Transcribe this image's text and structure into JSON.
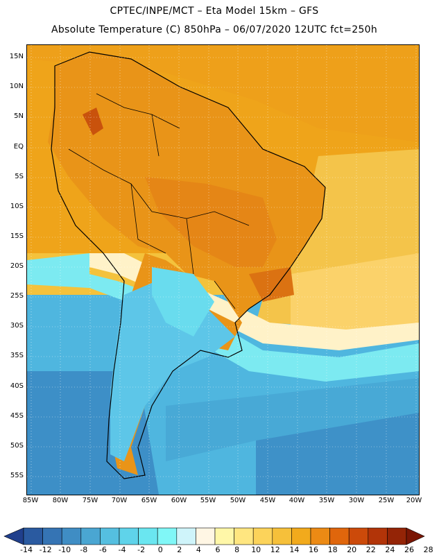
{
  "header": {
    "line1": "CPTEC/INPE/MCT –  Eta Model 15km – GFS",
    "line2": "Absolute Temperature (C) 850hPa – 06/07/2020 12UTC fct=250h"
  },
  "lat_labels": [
    "15N",
    "10N",
    "5N",
    "EQ",
    "5S",
    "10S",
    "15S",
    "20S",
    "25S",
    "30S",
    "35S",
    "40S",
    "45S",
    "50S",
    "55S"
  ],
  "lon_labels": [
    "85W",
    "80W",
    "75W",
    "70W",
    "65W",
    "60W",
    "55W",
    "50W",
    "45W",
    "40W",
    "35W",
    "30W",
    "25W",
    "20W"
  ],
  "colorbar": {
    "labels": [
      "-14",
      "-12",
      "-10",
      "-8",
      "-6",
      "-4",
      "-2",
      "0",
      "2",
      "4",
      "6",
      "8",
      "10",
      "12",
      "14",
      "16",
      "18",
      "20",
      "22",
      "24",
      "26",
      "28"
    ],
    "colors": [
      "#203f8c",
      "#2a5aa0",
      "#3574b4",
      "#3f8dc4",
      "#4aa6d2",
      "#55bfe0",
      "#5fd3ea",
      "#6ae6f0",
      "#80f7f7",
      "#cff4fa",
      "#fff6e4",
      "#fff7a8",
      "#ffe680",
      "#fcd35a",
      "#f6c03a",
      "#f2aa1c",
      "#ec8a14",
      "#e0660c",
      "#cc4a0a",
      "#b23408",
      "#942406",
      "#7a1604"
    ]
  }
}
